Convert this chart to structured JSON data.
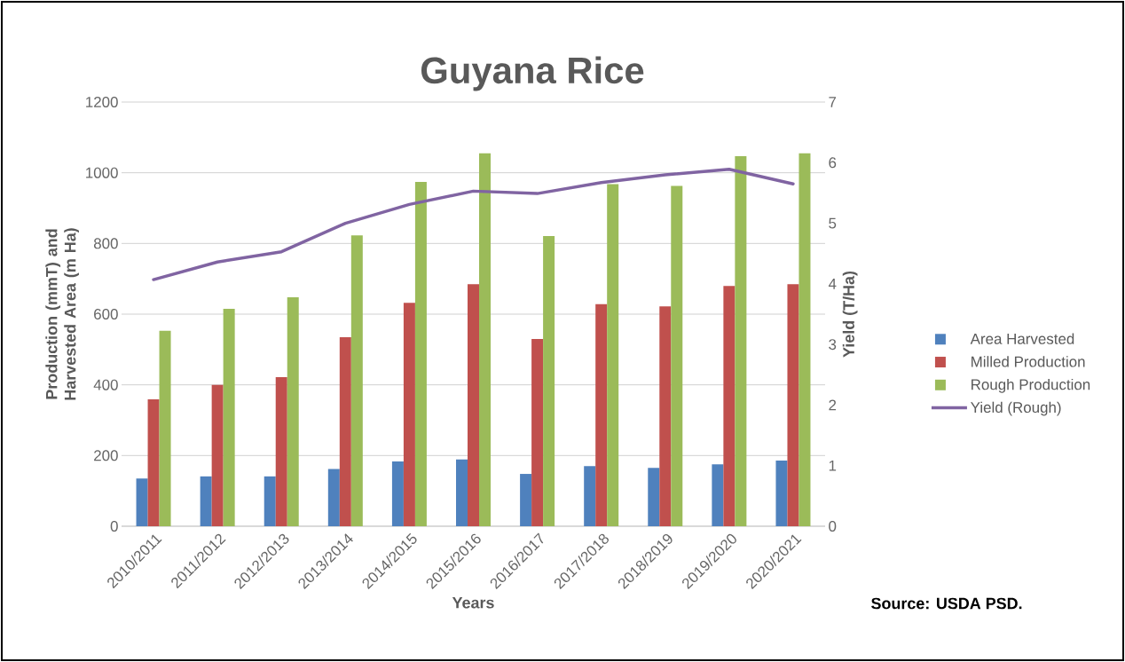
{
  "chart_data": {
    "type": "bar",
    "title": "Guyana Rice",
    "xlabel": "Years",
    "ylabel": "Production (mmT) and Harvested Area (m Ha)",
    "y2label": "Yield (T/Ha)",
    "categories": [
      "2010/2011",
      "2011/2012",
      "2012/2013",
      "2013/2014",
      "2014/2015",
      "2015/2016",
      "2016/2017",
      "2017/2018",
      "2018/2019",
      "2019/2020",
      "2020/2021"
    ],
    "series": [
      {
        "name": "Area Harvested",
        "color": "#4f81bd",
        "values": [
          135,
          141,
          141,
          162,
          183,
          189,
          148,
          170,
          165,
          175,
          186
        ]
      },
      {
        "name": "Milled Production",
        "color": "#c0504d",
        "values": [
          359,
          400,
          422,
          535,
          632,
          685,
          530,
          628,
          622,
          680,
          685
        ]
      },
      {
        "name": "Rough Production",
        "color": "#9bbb59",
        "values": [
          553,
          615,
          648,
          823,
          974,
          1055,
          821,
          968,
          963,
          1047,
          1055
        ]
      },
      {
        "name": "Yield (Rough)",
        "type": "line",
        "axis": "y2",
        "color": "#8064a2",
        "values": [
          4.07,
          4.36,
          4.53,
          5.0,
          5.31,
          5.53,
          5.49,
          5.67,
          5.8,
          5.89,
          5.65
        ]
      }
    ],
    "ylim": [
      0,
      1200
    ],
    "yticks": [
      0,
      200,
      400,
      600,
      800,
      1000,
      1200
    ],
    "y2lim": [
      0,
      7
    ],
    "y2ticks": [
      0,
      1,
      2,
      3,
      4,
      5,
      6,
      7
    ],
    "grid": "y",
    "legend": "right",
    "annotations": [
      "Source:  USDA PSD."
    ]
  }
}
